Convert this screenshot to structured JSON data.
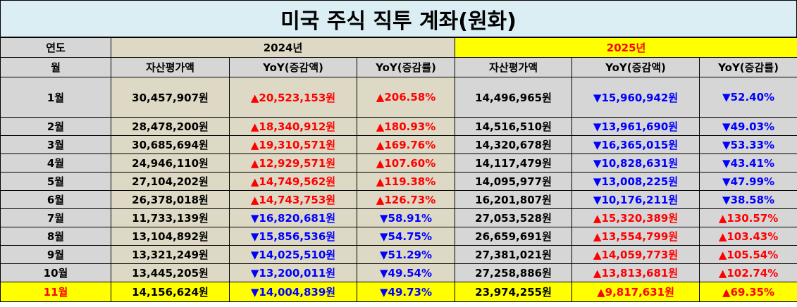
{
  "title": "미국 주식 직투 계좌(원화)",
  "header": {
    "year_col_label": "연도",
    "month_col_label": "월",
    "year_2024": "2024년",
    "year_2025": "2025년",
    "col_asset": "자산평가액",
    "col_yoy_amount": "YoY(증감액)",
    "col_yoy_rate": "YoY(증감률)"
  },
  "rows": [
    {
      "month": "1월",
      "a24": "30,457,907원",
      "d24": "▲20,523,153원",
      "r24": "▲206.58%",
      "a25": "14,496,965원",
      "d25": "▼15,960,942원",
      "r25": "▼52.40%",
      "dir24": "up",
      "dir25": "down"
    },
    {
      "month": "2월",
      "a24": "28,478,200원",
      "d24": "▲18,340,912원",
      "r24": "▲180.93%",
      "a25": "14,516,510원",
      "d25": "▼13,961,690원",
      "r25": "▼49.03%",
      "dir24": "up",
      "dir25": "down"
    },
    {
      "month": "3월",
      "a24": "30,685,694원",
      "d24": "▲19,310,571원",
      "r24": "▲169.76%",
      "a25": "14,320,678원",
      "d25": "▼16,365,015원",
      "r25": "▼53.33%",
      "dir24": "up",
      "dir25": "down"
    },
    {
      "month": "4월",
      "a24": "24,946,110원",
      "d24": "▲12,929,571원",
      "r24": "▲107.60%",
      "a25": "14,117,479원",
      "d25": "▼10,828,631원",
      "r25": "▼43.41%",
      "dir24": "up",
      "dir25": "down"
    },
    {
      "month": "5월",
      "a24": "27,104,202원",
      "d24": "▲14,749,562원",
      "r24": "▲119.38%",
      "a25": "14,095,977원",
      "d25": "▼13,008,225원",
      "r25": "▼47.99%",
      "dir24": "up",
      "dir25": "down"
    },
    {
      "month": "6월",
      "a24": "26,378,018원",
      "d24": "▲14,743,753원",
      "r24": "▲126.73%",
      "a25": "16,201,807원",
      "d25": "▼10,176,211원",
      "r25": "▼38.58%",
      "dir24": "up",
      "dir25": "down"
    },
    {
      "month": "7월",
      "a24": "11,733,139원",
      "d24": "▼16,820,681원",
      "r24": "▼58.91%",
      "a25": "27,053,528원",
      "d25": "▲15,320,389원",
      "r25": "▲130.57%",
      "dir24": "down",
      "dir25": "up"
    },
    {
      "month": "8월",
      "a24": "13,104,892원",
      "d24": "▼15,856,536원",
      "r24": "▼54.75%",
      "a25": "26,659,691원",
      "d25": "▲13,554,799원",
      "r25": "▲103.43%",
      "dir24": "down",
      "dir25": "up"
    },
    {
      "month": "9월",
      "a24": "13,321,249원",
      "d24": "▼14,025,510원",
      "r24": "▼51.29%",
      "a25": "27,381,021원",
      "d25": "▲14,059,773원",
      "r25": "▲105.54%",
      "dir24": "down",
      "dir25": "up"
    },
    {
      "month": "10월",
      "a24": "13,445,205원",
      "d24": "▼13,200,011원",
      "r24": "▼49.54%",
      "a25": "27,258,886원",
      "d25": "▲13,813,681원",
      "r25": "▲102.74%",
      "dir24": "down",
      "dir25": "up"
    },
    {
      "month": "11월",
      "a24": "14,156,624원",
      "d24": "▼14,004,839원",
      "r24": "▼49.73%",
      "a25": "23,974,255원",
      "d25": "▲9,817,631원",
      "r25": "▲69.35%",
      "dir24": "down",
      "dir25": "up"
    }
  ],
  "colors": {
    "up": "#ff0000",
    "down": "#0000ff",
    "highlight": "#ffff00",
    "title_bg": "#dbeef4",
    "col2024_bg": "#ddd9c4",
    "gray_bg": "#d6d6d6"
  }
}
